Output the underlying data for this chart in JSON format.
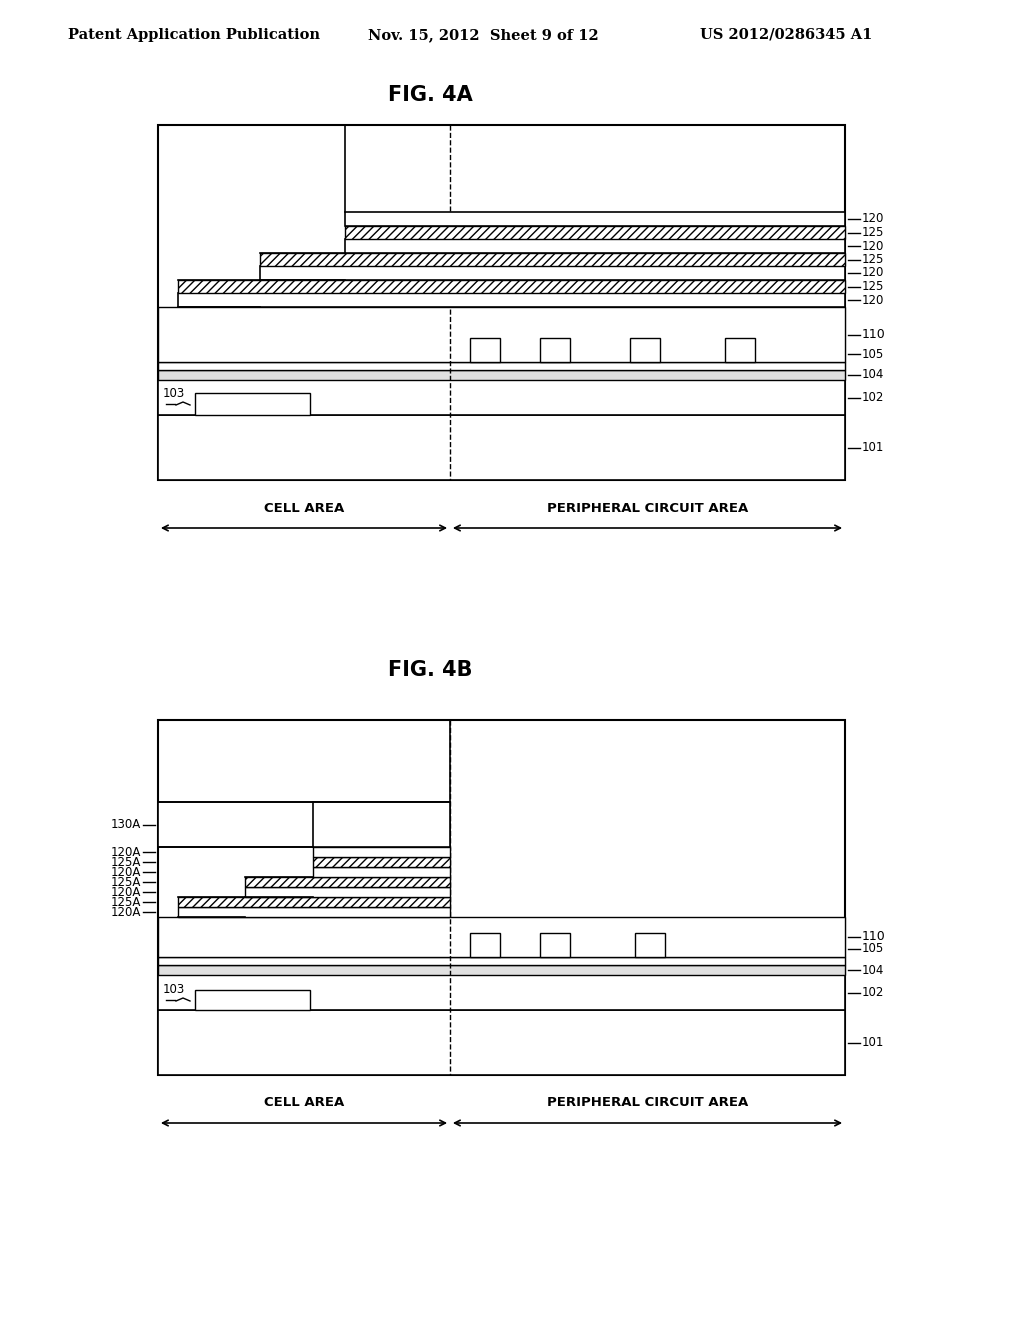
{
  "header_left": "Patent Application Publication",
  "header_mid": "Nov. 15, 2012  Sheet 9 of 12",
  "header_right": "US 2012/0286345 A1",
  "fig4a_title": "FIG. 4A",
  "fig4b_title": "FIG. 4B",
  "cell_area_label": "CELL AREA",
  "peripheral_label": "PERIPHERAL CIRCUIT AREA",
  "bg_color": "#ffffff"
}
